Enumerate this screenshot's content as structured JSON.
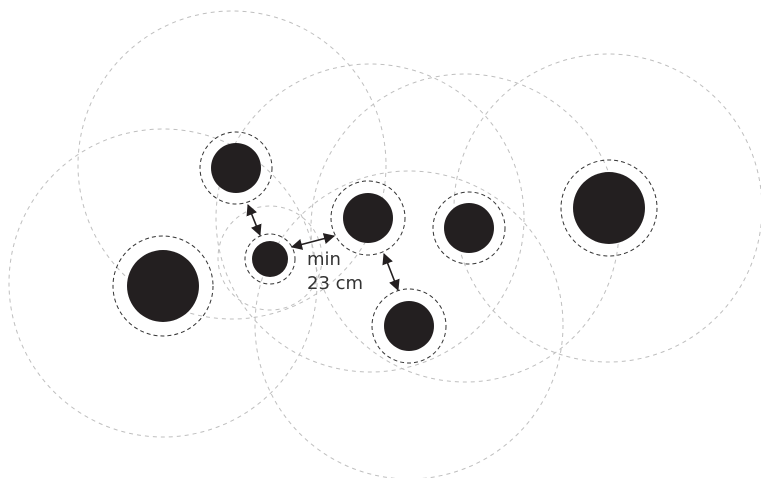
{
  "diagram": {
    "label_line_1": "min",
    "label_line_2": "23 cm"
  },
  "colors": {
    "stone": "#231f20",
    "dashed_halo": "#333333",
    "dashed_reach": "#bfbfbf",
    "arrow": "#231f20",
    "text": "#333333",
    "background": "#ffffff"
  }
}
